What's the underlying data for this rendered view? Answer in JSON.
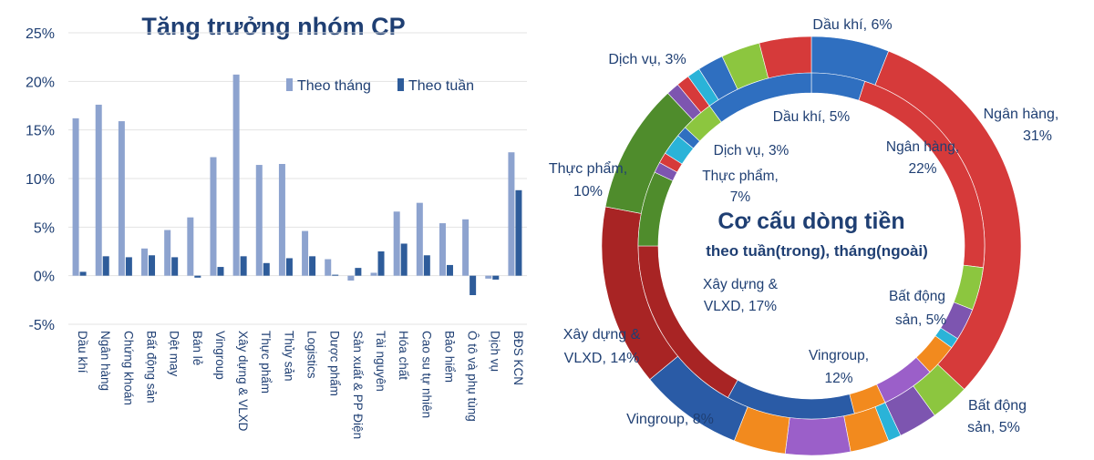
{
  "chart_data": [
    {
      "type": "bar",
      "title": "Tăng trưởng nhóm CP",
      "ylim": [
        -5,
        25
      ],
      "y_ticks": [
        "-5%",
        "0%",
        "5%",
        "10%",
        "15%",
        "20%",
        "25%"
      ],
      "y_tick_values": [
        -5,
        0,
        5,
        10,
        15,
        20,
        25
      ],
      "grid": true,
      "legend_position": "top-right",
      "categories": [
        "Dầu khí",
        "Ngân hàng",
        "Chứng khoán",
        "Bất động sản",
        "Dệt may",
        "Bán lẻ",
        "Vingroup",
        "Xây dựng & VLXD",
        "Thực phẩm",
        "Thủy sản",
        "Logistics",
        "Dược phẩm",
        "Sản xuất & PP Điện",
        "Tài nguyên",
        "Hóa chất",
        "Cao su tự nhiên",
        "Bảo hiểm",
        "Ô tô và phụ tùng",
        "Dịch vụ",
        "BĐS KCN"
      ],
      "series": [
        {
          "name": "Theo tháng",
          "color": "#8da3cf",
          "values": [
            16.2,
            17.6,
            15.9,
            2.8,
            4.7,
            6.0,
            12.2,
            20.7,
            11.4,
            11.5,
            4.6,
            1.7,
            -0.5,
            0.3,
            6.6,
            7.5,
            5.4,
            5.8,
            -0.3,
            12.7
          ]
        },
        {
          "name": "Theo tuần",
          "color": "#2e5c9a",
          "values": [
            0.4,
            2.0,
            1.9,
            2.1,
            1.9,
            -0.2,
            0.9,
            2.0,
            1.3,
            1.8,
            2.0,
            0.1,
            0.8,
            2.5,
            3.3,
            2.1,
            1.1,
            -2.0,
            -0.4,
            8.8
          ]
        }
      ]
    },
    {
      "type": "pie",
      "variant": "double-donut",
      "title": "Cơ cấu dòng tiền",
      "subtitle": "theo tuần(trong), tháng(ngoài)",
      "outer": {
        "name": "tháng",
        "slices": [
          {
            "label": "Dầu khí, 6%",
            "value": 6,
            "color": "#2f6fc0"
          },
          {
            "label": "Ngân hàng, 31%",
            "value": 31,
            "color": "#d63a3a"
          },
          {
            "label": "",
            "value": 3,
            "color": "#8cc63f"
          },
          {
            "label": "",
            "value": 3,
            "color": "#7d55b0"
          },
          {
            "label": "",
            "value": 1,
            "color": "#2ab3d8"
          },
          {
            "label": "",
            "value": 3,
            "color": "#f28a1e"
          },
          {
            "label": "Bất động sản, 5%",
            "value": 5,
            "color": "#9b5fc9"
          },
          {
            "label": "",
            "value": 4,
            "color": "#f28a1e"
          },
          {
            "label": "Vingroup, 8%",
            "value": 8,
            "color": "#2a5ba6"
          },
          {
            "label": "Xây dựng & VLXD, 14%",
            "value": 14,
            "color": "#a82424"
          },
          {
            "label": "Thực phẩm, 10%",
            "value": 10,
            "color": "#4f8c2c"
          },
          {
            "label": "",
            "value": 1,
            "color": "#7d55b0"
          },
          {
            "label": "",
            "value": 1,
            "color": "#d63a3a"
          },
          {
            "label": "",
            "value": 1,
            "color": "#2ab3d8"
          },
          {
            "label": "",
            "value": 2,
            "color": "#2f6fc0"
          },
          {
            "label": "Dịch vụ, 3%",
            "value": 3,
            "color": "#8cc63f"
          },
          {
            "label": "",
            "value": 4,
            "color": "#d63a3a"
          }
        ]
      },
      "inner": {
        "name": "tuần",
        "slices": [
          {
            "label": "Dầu khí, 5%",
            "value": 5,
            "color": "#2f6fc0"
          },
          {
            "label": "Ngân hàng, 22%",
            "value": 22,
            "color": "#d63a3a"
          },
          {
            "label": "",
            "value": 4,
            "color": "#8cc63f"
          },
          {
            "label": "",
            "value": 3,
            "color": "#7d55b0"
          },
          {
            "label": "",
            "value": 1,
            "color": "#2ab3d8"
          },
          {
            "label": "",
            "value": 3,
            "color": "#f28a1e"
          },
          {
            "label": "Bất động sản, 5%",
            "value": 5,
            "color": "#9b5fc9"
          },
          {
            "label": "",
            "value": 3,
            "color": "#f28a1e"
          },
          {
            "label": "Vingroup, 12%",
            "value": 12,
            "color": "#2a5ba6"
          },
          {
            "label": "Xây dựng & VLXD, 17%",
            "value": 17,
            "color": "#a82424"
          },
          {
            "label": "Thực phẩm, 7%",
            "value": 7,
            "color": "#4f8c2c"
          },
          {
            "label": "",
            "value": 1,
            "color": "#7d55b0"
          },
          {
            "label": "",
            "value": 1,
            "color": "#d63a3a"
          },
          {
            "label": "",
            "value": 2,
            "color": "#2ab3d8"
          },
          {
            "label": "",
            "value": 1,
            "color": "#2f6fc0"
          },
          {
            "label": "Dịch vụ, 3%",
            "value": 3,
            "color": "#8cc63f"
          },
          {
            "label": "",
            "value": 10,
            "color": "#2f6fc0"
          }
        ]
      }
    }
  ]
}
